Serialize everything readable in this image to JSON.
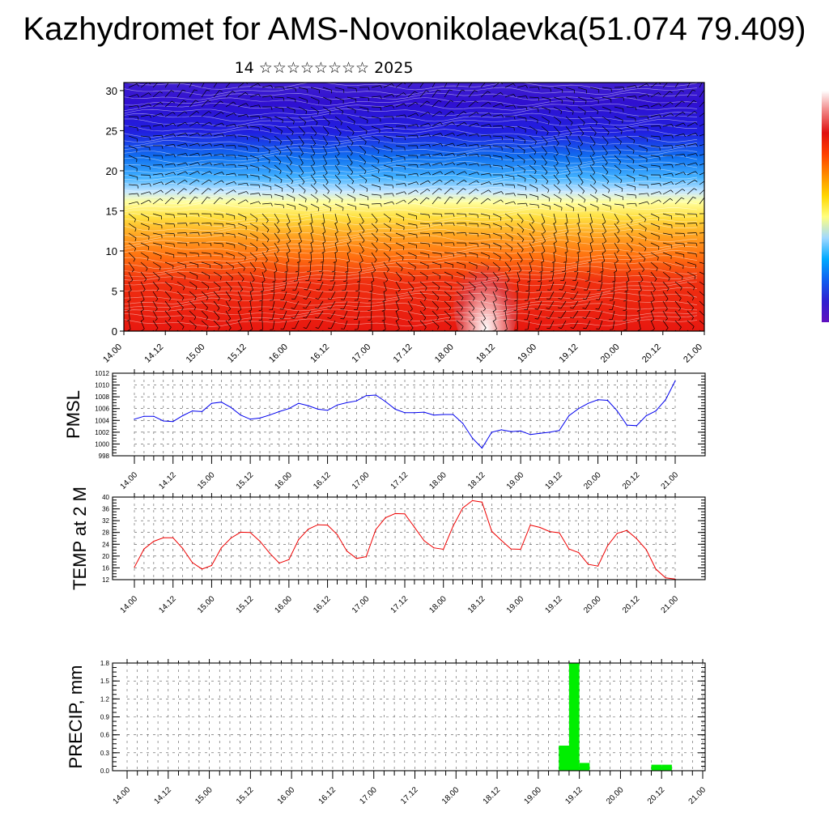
{
  "title": "Kazhydromet for AMS-Novonikolaevka(51.074 79.409)",
  "subtitle": "14 ☆☆☆☆☆☆☆☆ 2025",
  "time_ticks": [
    "14.00",
    "14.12",
    "15.00",
    "15.12",
    "16.00",
    "16.12",
    "17.00",
    "17.12",
    "18.00",
    "18.12",
    "19.00",
    "19.12",
    "20.00",
    "20.12",
    "21.00"
  ],
  "chart_data": [
    {
      "type": "heatmap",
      "title": "",
      "xlabel": "",
      "ylabel": "",
      "x_ticks": [
        "14.00",
        "14.12",
        "15.00",
        "15.12",
        "16.00",
        "16.12",
        "17.00",
        "17.12",
        "18.00",
        "18.12",
        "19.00",
        "19.12",
        "20.00",
        "20.12",
        "21.00"
      ],
      "ylim": [
        0,
        31
      ],
      "y_ticks": [
        0,
        5,
        10,
        15,
        20,
        25,
        30
      ],
      "colorbar_colors": [
        "#ffffff",
        "#f08080",
        "#e01010",
        "#ff4000",
        "#ff8c00",
        "#ffd700",
        "#ffff80",
        "#a0d8ff",
        "#00aaff",
        "#1060f0",
        "#3020d0",
        "#6010c0"
      ],
      "overlay": "wind barbs and contour lines"
    },
    {
      "type": "line",
      "ylabel": "PMSL",
      "x_ticks": [
        "14.00",
        "14.12",
        "15.00",
        "15.12",
        "16.00",
        "16.12",
        "17.00",
        "17.12",
        "18.00",
        "18.12",
        "19.00",
        "19.12",
        "20.00",
        "20.12",
        "21.00"
      ],
      "ylim": [
        998,
        1012
      ],
      "y_ticks": [
        998,
        1000,
        1002,
        1004,
        1006,
        1008,
        1010,
        1012
      ],
      "color": "#0000ee",
      "grid": true,
      "series": [
        {
          "values": [
            1004.2,
            1004.7,
            1004.7,
            1003.9,
            1003.8,
            1004.8,
            1005.6,
            1005.5,
            1006.9,
            1007.1,
            1006.2,
            1004.9,
            1004.2,
            1004.4,
            1004.9,
            1005.5,
            1006.0,
            1006.9,
            1006.5,
            1005.9,
            1005.7,
            1006.6,
            1007.0,
            1007.3,
            1008.2,
            1008.3,
            1007.2,
            1005.9,
            1005.3,
            1005.3,
            1005.4,
            1004.9,
            1005.0,
            1005.0,
            1003.5,
            1001.0,
            999.3,
            1002.0,
            1002.4,
            1002.1,
            1002.2,
            1001.6,
            1001.8,
            1002.0,
            1002.3,
            1004.8,
            1006.0,
            1006.9,
            1007.5,
            1007.4,
            1005.6,
            1003.2,
            1003.1,
            1004.8,
            1005.6,
            1007.5,
            1010.7
          ]
        }
      ]
    },
    {
      "type": "line",
      "ylabel": "TEMP at 2 M",
      "x_ticks": [
        "14.00",
        "14.12",
        "15.00",
        "15.12",
        "16.00",
        "16.12",
        "17.00",
        "17.12",
        "18.00",
        "18.12",
        "19.00",
        "19.12",
        "20.00",
        "20.12",
        "21.00"
      ],
      "ylim": [
        12,
        40
      ],
      "y_ticks": [
        12,
        16,
        20,
        24,
        28,
        32,
        36,
        40
      ],
      "color": "#ee0000",
      "grid": true,
      "series": [
        {
          "values": [
            16.2,
            22.4,
            25.0,
            26.2,
            26.2,
            22.6,
            17.8,
            15.6,
            16.8,
            22.8,
            26.1,
            28.1,
            28.0,
            25.0,
            21.0,
            17.6,
            18.8,
            25.6,
            29.1,
            30.6,
            30.5,
            27.3,
            21.7,
            19.2,
            19.8,
            29.0,
            33.0,
            34.4,
            34.3,
            29.8,
            25.2,
            22.8,
            22.3,
            30.1,
            36.3,
            38.8,
            38.3,
            28.4,
            25.3,
            22.4,
            22.3,
            30.5,
            29.7,
            28.3,
            27.9,
            22.4,
            21.2,
            17.2,
            16.6,
            23.5,
            27.7,
            28.7,
            25.9,
            22.2,
            15.6,
            12.6,
            12.2
          ]
        }
      ]
    },
    {
      "type": "bar",
      "ylabel": "PRECIP, mm",
      "x_ticks": [
        "14.00",
        "14.12",
        "15.00",
        "15.12",
        "16.00",
        "16.12",
        "17.00",
        "17.12",
        "18.00",
        "18.12",
        "19.00",
        "19.12",
        "20.00",
        "20.12",
        "21.00"
      ],
      "ylim": [
        0.0,
        1.8
      ],
      "y_ticks": [
        "0.0",
        "0.3",
        "0.6",
        "0.9",
        "1.2",
        "1.5",
        "1.8"
      ],
      "color": "#00ee00",
      "grid": true,
      "bars": [
        {
          "start_h": 126,
          "end_h": 129,
          "value": 0.42
        },
        {
          "start_h": 129,
          "end_h": 132,
          "value": 1.8
        },
        {
          "start_h": 132,
          "end_h": 135,
          "value": 0.13
        },
        {
          "start_h": 153,
          "end_h": 156,
          "value": 0.1
        },
        {
          "start_h": 156,
          "end_h": 159,
          "value": 0.1
        }
      ]
    }
  ]
}
